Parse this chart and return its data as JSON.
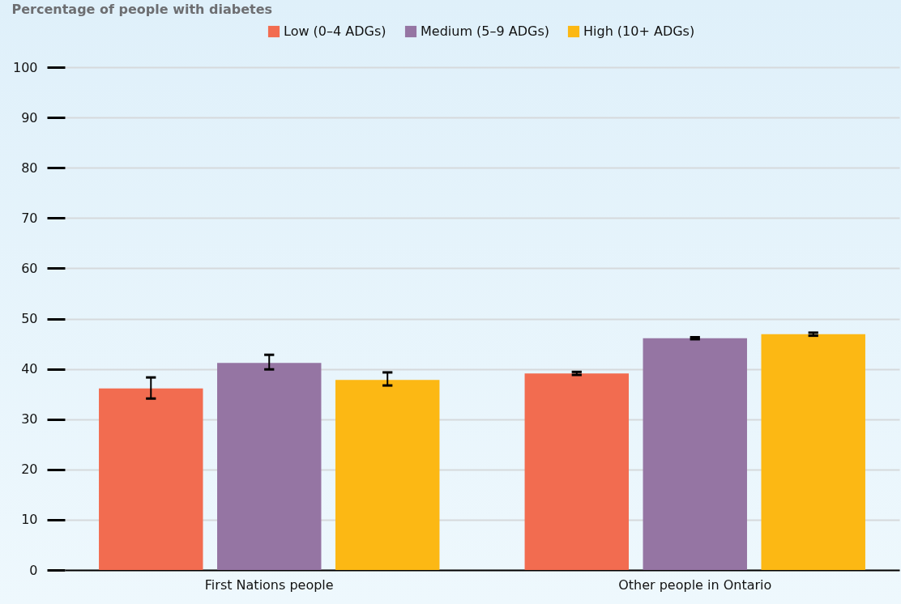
{
  "chart_data": {
    "type": "bar",
    "ylabel": "Percentage of people with diabetes",
    "categories": [
      "First Nations people",
      "Other people in Ontario"
    ],
    "series": [
      {
        "name": "Low (0–4 ADGs)",
        "color": "#f26c50",
        "values": [
          36.1,
          39.1
        ],
        "errors": [
          [
            34.1,
            38.3
          ],
          0.3
        ]
      },
      {
        "name": "Medium (5–9 ADGs)",
        "color": "#9575a3",
        "values": [
          41.2,
          46.1
        ],
        "errors": [
          [
            39.9,
            42.8
          ],
          0.2
        ]
      },
      {
        "name": "High (10+ ADGs)",
        "color": "#fcb814",
        "values": [
          37.8,
          46.9
        ],
        "errors": [
          [
            36.7,
            39.3
          ],
          0.3
        ]
      }
    ],
    "ylim": [
      0,
      100
    ],
    "yticks": [
      0,
      10,
      20,
      30,
      40,
      50,
      60,
      70,
      80,
      90,
      100
    ],
    "grid": "y",
    "legend": "top"
  }
}
